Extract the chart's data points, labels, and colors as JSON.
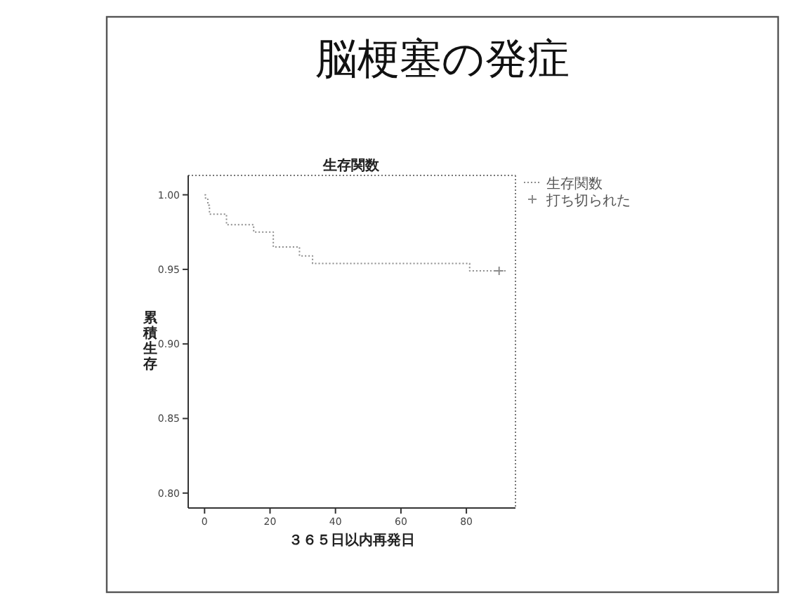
{
  "chart_data": {
    "type": "step",
    "title": "脳梗塞の発症",
    "subtitle": "生存関数",
    "xlabel": "３６５日以内再発日",
    "ylabel": "累積生存",
    "xlim": [
      -5,
      95
    ],
    "ylim": [
      0.79,
      1.013
    ],
    "xticks": [
      0,
      20,
      40,
      60,
      80
    ],
    "yticks": [
      {
        "value": 0.8,
        "label": "0.80"
      },
      {
        "value": 0.85,
        "label": "0.85"
      },
      {
        "value": 0.9,
        "label": "0.90"
      },
      {
        "value": 0.95,
        "label": "0.95"
      },
      {
        "value": 1.0,
        "label": "1.00"
      }
    ],
    "legend": "top right",
    "series": [
      {
        "name": "生存関数",
        "color": "#8c8c8c",
        "line_style": "dotted",
        "x": [
          0,
          0.3,
          1,
          1.5,
          6.7,
          15,
          21,
          29,
          33,
          81,
          92
        ],
        "values": [
          1.0,
          0.997,
          0.993,
          0.987,
          0.98,
          0.975,
          0.965,
          0.959,
          0.954,
          0.949,
          0.949
        ]
      },
      {
        "name": "打ち切られた",
        "type": "scatter",
        "color": "#8c8c8c",
        "marker": "cross",
        "x": [
          90
        ],
        "values": [
          0.949
        ]
      }
    ]
  }
}
